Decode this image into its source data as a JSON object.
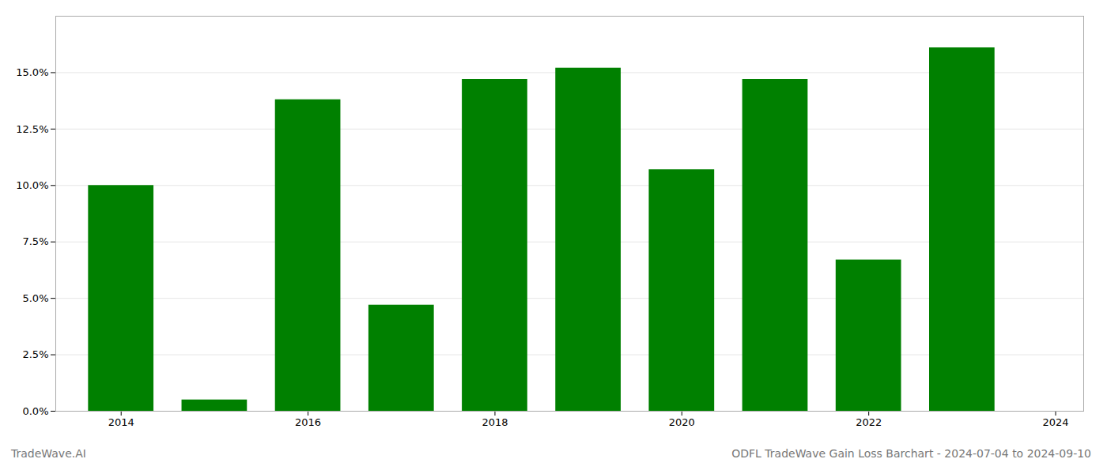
{
  "chart_data": {
    "type": "bar",
    "title": "ODFL TradeWave Gain Loss Barchart - 2024-07-04 to 2024-09-10",
    "annotations": [
      "TradeWave.AI"
    ],
    "x": [
      2014,
      2015,
      2016,
      2017,
      2018,
      2019,
      2020,
      2021,
      2022,
      2023
    ],
    "values": [
      0.1,
      0.005,
      0.138,
      0.047,
      0.147,
      0.152,
      0.107,
      0.147,
      0.067,
      0.161
    ],
    "color": "#008000",
    "xlim": [
      2013.3,
      2024.3
    ],
    "xticks": [
      2014,
      2016,
      2018,
      2020,
      2022,
      2024
    ],
    "ylim": [
      0.0,
      0.175
    ],
    "yticks": [
      {
        "value": 0.0,
        "label": "0.0%"
      },
      {
        "value": 0.025,
        "label": "2.5%"
      },
      {
        "value": 0.05,
        "label": "5.0%"
      },
      {
        "value": 0.075,
        "label": "7.5%"
      },
      {
        "value": 0.1,
        "label": "10.0%"
      },
      {
        "value": 0.125,
        "label": "12.5%"
      },
      {
        "value": 0.15,
        "label": "15.0%"
      }
    ],
    "grid": true
  }
}
